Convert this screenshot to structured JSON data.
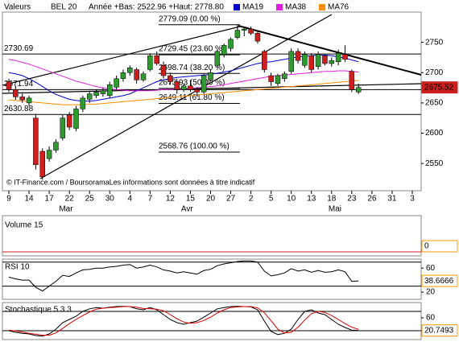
{
  "chart_data": [
    {
      "type": "candlestick",
      "header_label": "Valeurs",
      "title": "BEL 20",
      "subtitle": "Année +Bas: 2522.96 +Haut: 2778.80",
      "copyright": "© IT-Finance.com / BoursoramaLes informations sont données à titre indicatif",
      "categories": [
        "9",
        null,
        null,
        "14",
        null,
        null,
        "17",
        null,
        null,
        "22",
        null,
        null,
        "25",
        null,
        null,
        "30",
        null,
        null,
        "4",
        null,
        null,
        "7",
        null,
        null,
        "12",
        null,
        null,
        "15",
        null,
        null,
        "20",
        null,
        null,
        "27",
        null,
        null,
        "2",
        null,
        null,
        "5",
        null,
        null,
        "10",
        null,
        null,
        "13",
        null,
        null,
        "18",
        null,
        null,
        "23",
        null,
        null,
        "26",
        null,
        null,
        "31",
        null,
        null,
        "3",
        null
      ],
      "months": [
        {
          "name": "Mar",
          "start": 0
        },
        {
          "name": "Avr",
          "start": 18
        },
        {
          "name": "Mai",
          "start": 36
        }
      ],
      "open": [
        2685,
        2672,
        2660,
        2650,
        2625,
        2570,
        2558,
        2572,
        2592,
        2630,
        2608,
        2640,
        2656,
        2662,
        2665,
        2662,
        2676,
        2690,
        2700,
        2705,
        2688,
        2705,
        2728,
        2712,
        2695,
        2685,
        2672,
        2678,
        2672,
        2668,
        2688,
        2712,
        2730,
        2740,
        2758,
        2770,
        2772,
        2765,
        2735,
        2695,
        2682,
        2690,
        2702,
        2735,
        2712,
        2728,
        2710,
        2728,
        2715,
        2718,
        2730,
        2702,
        2668,
        null,
        null,
        null,
        null,
        null,
        null,
        null,
        null,
        null
      ],
      "high": [
        2690,
        2678,
        2668,
        2662,
        2632,
        2575,
        2578,
        2590,
        2630,
        2635,
        2645,
        2662,
        2670,
        2672,
        2675,
        2685,
        2695,
        2705,
        2712,
        2708,
        2702,
        2732,
        2735,
        2718,
        2700,
        2690,
        2682,
        2688,
        2676,
        2698,
        2705,
        2738,
        2748,
        2758,
        2779,
        2776,
        2776,
        2768,
        2738,
        2700,
        2698,
        2702,
        2740,
        2740,
        2735,
        2732,
        2735,
        2730,
        2725,
        2738,
        2745,
        2705,
        2682,
        null,
        null,
        null,
        null,
        null,
        null,
        null,
        null,
        null
      ],
      "low": [
        2668,
        2655,
        2650,
        2645,
        2540,
        2523,
        2553,
        2568,
        2588,
        2605,
        2603,
        2635,
        2650,
        2658,
        2660,
        2658,
        2672,
        2685,
        2695,
        2682,
        2685,
        2702,
        2712,
        2690,
        2680,
        2665,
        2668,
        2668,
        2660,
        2665,
        2685,
        2708,
        2725,
        2735,
        2755,
        2760,
        2762,
        2748,
        2700,
        2678,
        2678,
        2685,
        2698,
        2715,
        2708,
        2700,
        2705,
        2712,
        2710,
        2712,
        2718,
        2668,
        2665,
        null,
        null,
        null,
        null,
        null,
        null,
        null,
        null,
        null
      ],
      "close": [
        2672,
        2660,
        2655,
        2658,
        2548,
        2528,
        2572,
        2585,
        2625,
        2610,
        2640,
        2658,
        2665,
        2668,
        2670,
        2680,
        2690,
        2700,
        2708,
        2688,
        2698,
        2728,
        2715,
        2695,
        2685,
        2672,
        2678,
        2672,
        2668,
        2695,
        2700,
        2735,
        2745,
        2755,
        2770,
        2772,
        2765,
        2752,
        2705,
        2685,
        2695,
        2698,
        2735,
        2720,
        2730,
        2705,
        2730,
        2715,
        2720,
        2732,
        2722,
        2672,
        2675.52,
        null,
        null,
        null,
        null,
        null,
        null,
        null,
        null,
        null
      ],
      "up_color": "#2f9a2f",
      "down_color": "#cc2020",
      "series": [
        {
          "name": "MA19",
          "color": "#0000cc",
          "values": [
            2700,
            2698,
            2695,
            2690,
            2684,
            2677,
            2670,
            2664,
            2660,
            2656,
            2654,
            2653,
            2653,
            2654,
            2656,
            2658,
            2660,
            2662,
            2665,
            2670,
            2675,
            2680,
            2685,
            2688,
            2690,
            2692,
            2693,
            2694,
            2695,
            2696,
            2697,
            2699,
            2701,
            2703,
            2706,
            2709,
            2712,
            2715,
            2717,
            2718,
            2720,
            2722,
            2724,
            2726,
            2727,
            2728,
            2729,
            2729,
            2728,
            2726,
            2724,
            2721,
            2718,
            null,
            null,
            null,
            null,
            null,
            null,
            null,
            null,
            null
          ]
        },
        {
          "name": "MA38",
          "color": "#e020e0",
          "values": [
            2722,
            2720,
            2717,
            2714,
            2710,
            2706,
            2702,
            2698,
            2694,
            2690,
            2686,
            2683,
            2680,
            2677,
            2675,
            2673,
            2672,
            2671,
            2670,
            2670,
            2670,
            2670,
            2671,
            2672,
            2672,
            2673,
            2673,
            2674,
            2675,
            2676,
            2677,
            2678,
            2680,
            2682,
            2684,
            2686,
            2688,
            2690,
            2692,
            2694,
            2695,
            2696,
            2697,
            2698,
            2699,
            2700,
            2701,
            2702,
            2702,
            2703,
            2703,
            2702,
            2701,
            null,
            null,
            null,
            null,
            null,
            null,
            null,
            null,
            null
          ]
        },
        {
          "name": "MA76",
          "color": "#ff8c00",
          "values": [
            2655,
            2654,
            2653,
            2652,
            2651,
            2650,
            2649,
            2648,
            2647,
            2647,
            2647,
            2647,
            2648,
            2648,
            2649,
            2650,
            2651,
            2652,
            2653,
            2654,
            2655,
            2656,
            2657,
            2658,
            2659,
            2660,
            2661,
            2662,
            2663,
            2664,
            2665,
            2666,
            2667,
            2668,
            2669,
            2670,
            2671,
            2672,
            2673,
            2674,
            2675,
            2676,
            2677,
            2678,
            2679,
            2680,
            2681,
            2682,
            2683,
            2684,
            2685,
            2686,
            2687,
            null,
            null,
            null,
            null,
            null,
            null,
            null,
            null,
            null
          ]
        }
      ],
      "ylim": [
        2505,
        2800
      ],
      "yticks": [
        2550,
        2600,
        2650,
        2700,
        2750
      ],
      "levels": [
        2730.69,
        2671.94,
        2630.88
      ],
      "fib_levels": [
        {
          "value": 2779.09,
          "label": "2779.09 (0.00 %)"
        },
        {
          "value": 2729.45,
          "label": "2729.45 (23.60 %)"
        },
        {
          "value": 2698.74,
          "label": "2698.74 (38.20 %)"
        },
        {
          "value": 2673.93,
          "label": "2673.93 (50.00 %)"
        },
        {
          "value": 2649.11,
          "label": "2649.11 (61.80 %)"
        },
        {
          "value": 2568.76,
          "label": "2568.76 (100.00 %)"
        }
      ]
    },
    {
      "type": "bar",
      "title": "Volume 15",
      "last_value": 0
    },
    {
      "type": "line",
      "title": "RSI 10",
      "color": "#000000",
      "values": [
        45,
        42,
        40,
        40,
        28,
        22,
        30,
        38,
        48,
        46,
        52,
        57,
        58,
        60,
        60,
        62,
        63,
        65,
        66,
        60,
        62,
        65,
        62,
        57,
        55,
        52,
        54,
        52,
        50,
        56,
        58,
        64,
        67,
        69,
        71,
        72,
        72,
        70,
        55,
        47,
        49,
        52,
        59,
        55,
        57,
        53,
        56,
        53,
        54,
        57,
        54,
        38,
        38.6666
      ],
      "ylim": [
        8,
        75
      ],
      "yticks": [
        20,
        60
      ],
      "levels": [
        30,
        70
      ]
    },
    {
      "type": "line",
      "title": "Stochastique 5 3 3",
      "series": [
        {
          "color": "#000000",
          "values": [
            20,
            15,
            12,
            10,
            5,
            3,
            10,
            25,
            45,
            55,
            65,
            80,
            88,
            92,
            90,
            93,
            95,
            96,
            95,
            88,
            85,
            92,
            85,
            70,
            55,
            45,
            40,
            45,
            50,
            62,
            75,
            88,
            92,
            95,
            96,
            95,
            94,
            85,
            50,
            18,
            8,
            12,
            25,
            55,
            80,
            85,
            75,
            70,
            55,
            40,
            30,
            22,
            20.7493
          ]
        },
        {
          "color": "#dd0000",
          "values": [
            22,
            19,
            16,
            12,
            9,
            6,
            6,
            13,
            27,
            42,
            55,
            67,
            78,
            87,
            90,
            92,
            93,
            95,
            95,
            93,
            89,
            88,
            87,
            82,
            70,
            57,
            47,
            43,
            45,
            52,
            62,
            75,
            85,
            92,
            94,
            95,
            95,
            91,
            76,
            51,
            25,
            13,
            15,
            31,
            53,
            73,
            80,
            77,
            67,
            55,
            42,
            31,
            24
          ]
        }
      ],
      "ylim": [
        -7.5,
        107.5
      ],
      "yticks": [
        20,
        60
      ],
      "levels": [
        20,
        80
      ]
    }
  ]
}
